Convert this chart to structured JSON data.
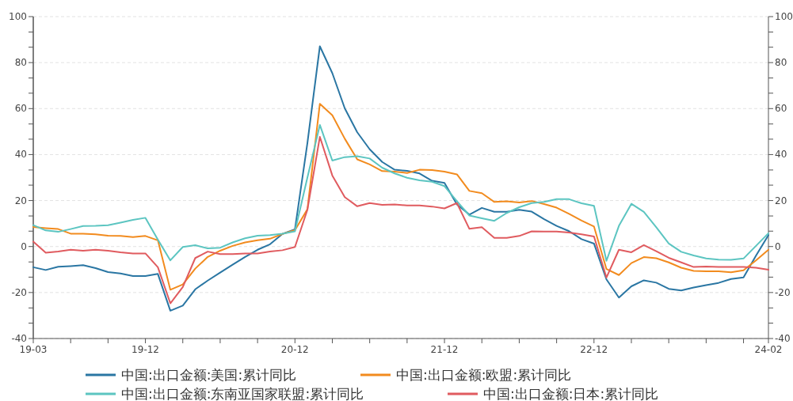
{
  "chart_data": {
    "type": "line",
    "categories": [
      "19-03",
      null,
      null,
      null,
      null,
      null,
      null,
      null,
      null,
      "19-12",
      null,
      null,
      null,
      null,
      null,
      null,
      null,
      null,
      null,
      null,
      null,
      "20-12",
      null,
      null,
      null,
      null,
      null,
      null,
      null,
      null,
      null,
      null,
      null,
      "21-12",
      null,
      null,
      null,
      null,
      null,
      null,
      null,
      null,
      null,
      null,
      null,
      "22-12",
      null,
      null,
      null,
      null,
      null,
      null,
      null,
      null,
      null,
      null,
      null,
      null,
      null,
      "24-02"
    ],
    "series": [
      {
        "name": "中国:出口金额:美国:累计同比",
        "color": "#2a76a3",
        "values": [
          -9,
          -10.2,
          -8.8,
          -8.5,
          -8.1,
          -9.4,
          -11.1,
          -11.7,
          -12.8,
          -12.8,
          -11.9,
          -27.9,
          -25.7,
          -18.6,
          -14.8,
          -11.3,
          -7.9,
          -4.5,
          -1.4,
          1,
          5.5,
          7.5,
          45,
          87.1,
          75.4,
          60.1,
          49.7,
          42.3,
          36.8,
          33.4,
          32.9,
          31.8,
          28.6,
          27.7,
          18.3,
          13.9,
          16.8,
          15.1,
          15.1,
          16,
          15.2,
          11.9,
          9,
          6.7,
          3.2,
          1.3,
          -14.3,
          -22.2,
          -17.3,
          -14.7,
          -15.7,
          -18.4,
          -19.1,
          -17.8,
          -16.8,
          -15.8,
          -14.1,
          -13.4,
          -4,
          5
        ]
      },
      {
        "name": "中国:出口金额:欧盟:累计同比",
        "color": "#f28b1e",
        "values": [
          8.5,
          8,
          7.6,
          5.6,
          5.6,
          5.3,
          4.7,
          4.6,
          4.1,
          4.6,
          2.7,
          -18.8,
          -16.5,
          -9.6,
          -4.5,
          -1.8,
          0.3,
          1.8,
          2.7,
          3.4,
          5.5,
          7.1,
          16.2,
          62.1,
          57.1,
          46.9,
          37.9,
          35.7,
          32.8,
          32.6,
          32,
          33.4,
          33.3,
          32.6,
          31.4,
          24.2,
          23.2,
          19.4,
          19.7,
          19.2,
          19.8,
          18.5,
          16.9,
          14.2,
          11.3,
          8.7,
          -9.8,
          -12.4,
          -7.2,
          -4.6,
          -5.1,
          -6.9,
          -9.2,
          -10.6,
          -10.8,
          -10.8,
          -11.2,
          -10.3,
          -6,
          -1.4
        ]
      },
      {
        "name": "中国:出口金额:东南亚国家联盟:累计同比",
        "color": "#5cc5c1",
        "values": [
          9.3,
          7,
          6.4,
          7.6,
          8.9,
          9,
          9.3,
          10.4,
          11.6,
          12.5,
          3,
          -6,
          -0.2,
          0.6,
          -0.8,
          -0.5,
          1.8,
          3.6,
          4.7,
          5,
          5.6,
          6.6,
          30,
          52.9,
          37.4,
          38.9,
          39.3,
          38.3,
          34.3,
          31.8,
          29.9,
          28.8,
          28.2,
          26.3,
          19.7,
          13.5,
          12.3,
          11.2,
          14.6,
          17.1,
          18.9,
          19.4,
          20.6,
          20.6,
          18.8,
          17.7,
          -6.2,
          9,
          18.6,
          15.1,
          8.4,
          1.3,
          -2.3,
          -3.9,
          -5.2,
          -5.7,
          -5.8,
          -5.2,
          0.3,
          5.8
        ]
      },
      {
        "name": "中国:出口金额:日本:累计同比",
        "color": "#e05b5f",
        "values": [
          2.1,
          -2.7,
          -2.2,
          -1.4,
          -1.8,
          -1.4,
          -1.8,
          -2.5,
          -3,
          -3,
          -9,
          -24.7,
          -17.6,
          -5,
          -2.2,
          -3.3,
          -3.3,
          -3,
          -3,
          -2.2,
          -1.6,
          -0.2,
          16,
          47.7,
          30.9,
          21.5,
          17.5,
          18.9,
          18.1,
          18.3,
          17.9,
          17.9,
          17.4,
          16.6,
          18.9,
          7.7,
          8.4,
          3.8,
          3.8,
          4.6,
          6.6,
          6.5,
          6.5,
          6.1,
          5.3,
          4.4,
          -13.5,
          -1.4,
          -2.5,
          0.6,
          -2,
          -4.9,
          -6.9,
          -8.9,
          -8.7,
          -8.9,
          -8.9,
          -8.9,
          -9.2,
          -10.1
        ]
      }
    ],
    "ylim": [
      -40,
      100
    ],
    "yticks": [
      -40,
      {
        "value": -33.3,
        "label": null
      },
      {
        "value": -26.7,
        "label": null
      },
      -20,
      {
        "value": -13.3,
        "label": null
      },
      {
        "value": -6.7,
        "label": null
      },
      0,
      {
        "value": 6.7,
        "label": null
      },
      {
        "value": 13.3,
        "label": null
      },
      20,
      {
        "value": 26.7,
        "label": null
      },
      {
        "value": 33.3,
        "label": null
      },
      40,
      {
        "value": 46.7,
        "label": null
      },
      {
        "value": 53.3,
        "label": null
      },
      60,
      {
        "value": 66.7,
        "label": null
      },
      {
        "value": 73.3,
        "label": null
      },
      80,
      {
        "value": 86.7,
        "label": null
      },
      {
        "value": 93.3,
        "label": null
      },
      100
    ],
    "y2lim": [
      -40,
      100
    ],
    "y2ticks": [
      -40,
      {
        "value": -33.3,
        "label": null
      },
      {
        "value": -26.7,
        "label": null
      },
      -20,
      {
        "value": -13.3,
        "label": null
      },
      {
        "value": -6.7,
        "label": null
      },
      0,
      {
        "value": 6.7,
        "label": null
      },
      {
        "value": 13.3,
        "label": null
      },
      20,
      {
        "value": 26.7,
        "label": null
      },
      {
        "value": 33.3,
        "label": null
      },
      40,
      {
        "value": 46.7,
        "label": null
      },
      {
        "value": 53.3,
        "label": null
      },
      60,
      {
        "value": 66.7,
        "label": null
      },
      {
        "value": 73.3,
        "label": null
      },
      80,
      {
        "value": 86.7,
        "label": null
      },
      {
        "value": 93.3,
        "label": null
      },
      100
    ],
    "grid": "y",
    "legend": "bottom",
    "marker": "none",
    "line_style": "solid"
  }
}
